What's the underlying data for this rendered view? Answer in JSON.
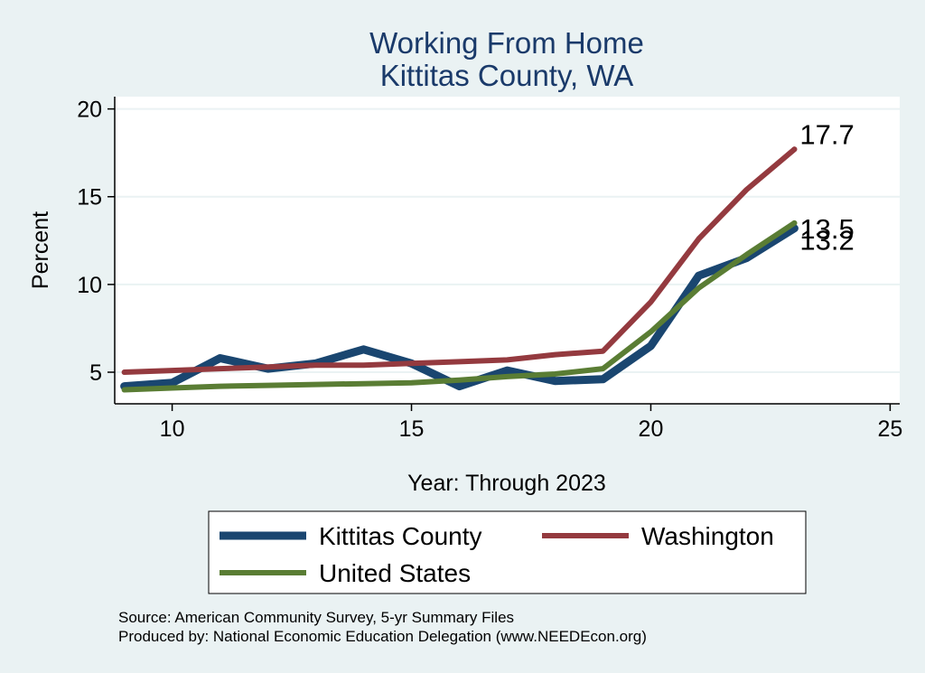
{
  "chart_data": {
    "type": "line",
    "title": [
      "Working From Home",
      "Kittitas County, WA"
    ],
    "xlabel": "Year: Through 2023",
    "ylabel": "Percent",
    "xlim": [
      8.8,
      25.2
    ],
    "ylim": [
      3.2,
      20.7
    ],
    "xticks": [
      10,
      15,
      20,
      25
    ],
    "yticks": [
      5,
      10,
      15,
      20
    ],
    "grid": true,
    "legend_position": "bottom",
    "series": [
      {
        "name": "Kittitas County",
        "color": "#1a4670",
        "x": [
          9,
          10,
          11,
          12,
          13,
          14,
          15,
          16,
          17,
          18,
          19,
          20,
          21,
          22,
          23
        ],
        "y": [
          4.2,
          4.4,
          5.8,
          5.2,
          5.5,
          6.3,
          5.5,
          4.2,
          5.1,
          4.5,
          4.6,
          6.5,
          10.5,
          11.5,
          13.2
        ],
        "end_label": "13.2"
      },
      {
        "name": "Washington",
        "color": "#943a3f",
        "x": [
          9,
          10,
          11,
          12,
          13,
          14,
          15,
          16,
          17,
          18,
          19,
          20,
          21,
          22,
          23
        ],
        "y": [
          5.0,
          5.1,
          5.2,
          5.3,
          5.4,
          5.4,
          5.5,
          5.6,
          5.7,
          6.0,
          6.2,
          9.0,
          12.6,
          15.4,
          17.7
        ],
        "end_label": "17.7"
      },
      {
        "name": "United States",
        "color": "#5a7d34",
        "x": [
          9,
          10,
          11,
          12,
          13,
          14,
          15,
          16,
          17,
          18,
          19,
          20,
          21,
          22,
          23
        ],
        "y": [
          4.0,
          4.1,
          4.2,
          4.25,
          4.3,
          4.35,
          4.4,
          4.55,
          4.75,
          4.9,
          5.2,
          7.3,
          9.8,
          11.7,
          13.5
        ],
        "end_label": "13.5"
      }
    ]
  },
  "footer": {
    "source": "Source: American Community Survey, 5-yr Summary Files",
    "produced": "Produced by: National Economic Education Delegation (www.NEEDEcon.org)"
  }
}
